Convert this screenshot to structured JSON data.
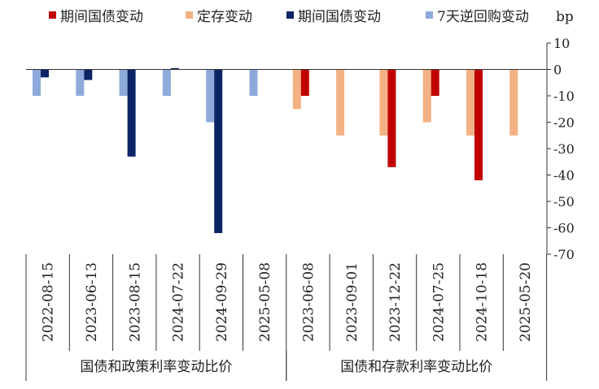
{
  "chart_data": {
    "type": "bar",
    "unit_label": "bp",
    "legend": [
      {
        "label": "期间国债变动",
        "color": "#c00000"
      },
      {
        "label": "定存变动",
        "color": "#f4b183"
      },
      {
        "label": "期间国债变动",
        "color": "#0d2466"
      },
      {
        "label": "7天逆回购变动",
        "color": "#8eaadb"
      }
    ],
    "ylim": [
      -70,
      10
    ],
    "yticks": [
      10,
      0,
      -10,
      -20,
      -30,
      -40,
      -50,
      -60,
      -70
    ],
    "legend_position": "top",
    "groups": [
      {
        "label": "国债和政策利率变动比价",
        "categories": [
          "2022-08-15",
          "2023-06-13",
          "2023-08-15",
          "2024-07-22",
          "2024-09-29",
          "2025-05-08"
        ],
        "series": [
          {
            "legend_index": 3,
            "values": [
              -10,
              -10,
              -10,
              -10,
              -20,
              -10
            ]
          },
          {
            "legend_index": 2,
            "values": [
              -3,
              -4,
              -33,
              0.5,
              -62,
              0
            ]
          }
        ]
      },
      {
        "label": "国债和存款利率变动比价",
        "categories": [
          "2023-06-08",
          "2023-09-01",
          "2023-12-22",
          "2024-07-25",
          "2024-10-18",
          "2025-05-20"
        ],
        "series": [
          {
            "legend_index": 1,
            "values": [
              -15,
              -25,
              -25,
              -20,
              -25,
              -25
            ]
          },
          {
            "legend_index": 0,
            "values": [
              -10,
              0,
              -37,
              -10,
              -42,
              0
            ]
          }
        ]
      }
    ]
  }
}
